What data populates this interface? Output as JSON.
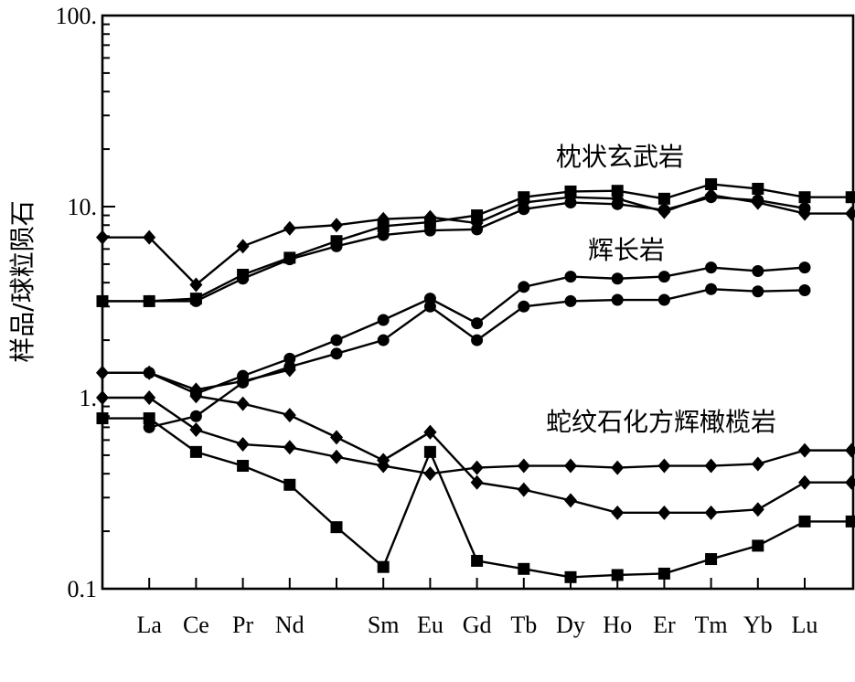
{
  "chart_data": {
    "type": "line",
    "title": "",
    "xlabel": "",
    "ylabel": "样品/球粒陨石",
    "yscale": "log",
    "ylim": [
      0.1,
      100
    ],
    "y_tick_labels": [
      "0.1",
      "1.",
      "10.",
      "100."
    ],
    "categories": [
      "",
      "La",
      "Ce",
      "Pr",
      "Nd",
      "",
      "Sm",
      "Eu",
      "Gd",
      "Tb",
      "Dy",
      "Ho",
      "Er",
      "Tm",
      "Yb",
      "Lu",
      ""
    ],
    "grid": false,
    "legend": "none",
    "annotations": [
      {
        "text": "枕状玄武岩"
      },
      {
        "text": "辉长岩"
      },
      {
        "text": "蛇纹石化方辉橄榄岩"
      }
    ],
    "series": [
      {
        "marker": "diamond",
        "values": [
          6.9,
          6.9,
          3.9,
          6.2,
          7.7,
          8.0,
          8.6,
          8.8,
          8.2,
          10.5,
          11.2,
          11.0,
          9.4,
          11.5,
          10.5,
          9.2,
          9.2
        ]
      },
      {
        "marker": "square",
        "values": [
          3.2,
          3.2,
          3.3,
          4.4,
          5.4,
          6.6,
          7.9,
          8.3,
          9.0,
          11.2,
          12.0,
          12.1,
          11.0,
          13.1,
          12.4,
          11.2,
          11.2
        ]
      },
      {
        "marker": "circle",
        "values": [
          3.2,
          3.2,
          3.2,
          4.2,
          5.3,
          6.2,
          7.1,
          7.5,
          7.6,
          9.7,
          10.5,
          10.3,
          9.6,
          11.2,
          10.8,
          9.8,
          null
        ]
      },
      {
        "marker": "circle",
        "values": [
          null,
          1.35,
          1.05,
          1.3,
          1.6,
          2.0,
          2.55,
          3.3,
          2.45,
          3.8,
          4.3,
          4.2,
          4.3,
          4.8,
          4.6,
          4.8,
          null
        ]
      },
      {
        "marker": "circle",
        "values": [
          null,
          0.7,
          0.8,
          1.2,
          1.45,
          1.7,
          2.0,
          3.0,
          2.0,
          3.0,
          3.2,
          3.25,
          3.25,
          3.7,
          3.6,
          3.65,
          null
        ]
      },
      {
        "marker": "diamond",
        "values": [
          1.35,
          1.35,
          1.1,
          1.22,
          1.4,
          null,
          0.47,
          0.66,
          null,
          null,
          null,
          null,
          null,
          null,
          null,
          null,
          null
        ]
      },
      {
        "marker": "diamond",
        "values": [
          1.0,
          1.0,
          0.68,
          0.57,
          0.55,
          0.49,
          0.44,
          0.4,
          0.43,
          0.44,
          0.44,
          0.43,
          0.44,
          0.44,
          0.45,
          0.53,
          0.53
        ]
      },
      {
        "marker": "diamond",
        "values": [
          null,
          null,
          1.02,
          0.93,
          0.81,
          0.62,
          0.47,
          0.66,
          0.36,
          0.33,
          0.29,
          0.25,
          0.25,
          0.25,
          0.26,
          0.36,
          0.36
        ]
      },
      {
        "marker": "square",
        "values": [
          0.78,
          0.78,
          0.52,
          0.44,
          0.35,
          0.21,
          0.13,
          0.52,
          0.14,
          0.127,
          0.115,
          0.118,
          0.12,
          0.143,
          0.168,
          0.225,
          0.225
        ]
      }
    ]
  }
}
